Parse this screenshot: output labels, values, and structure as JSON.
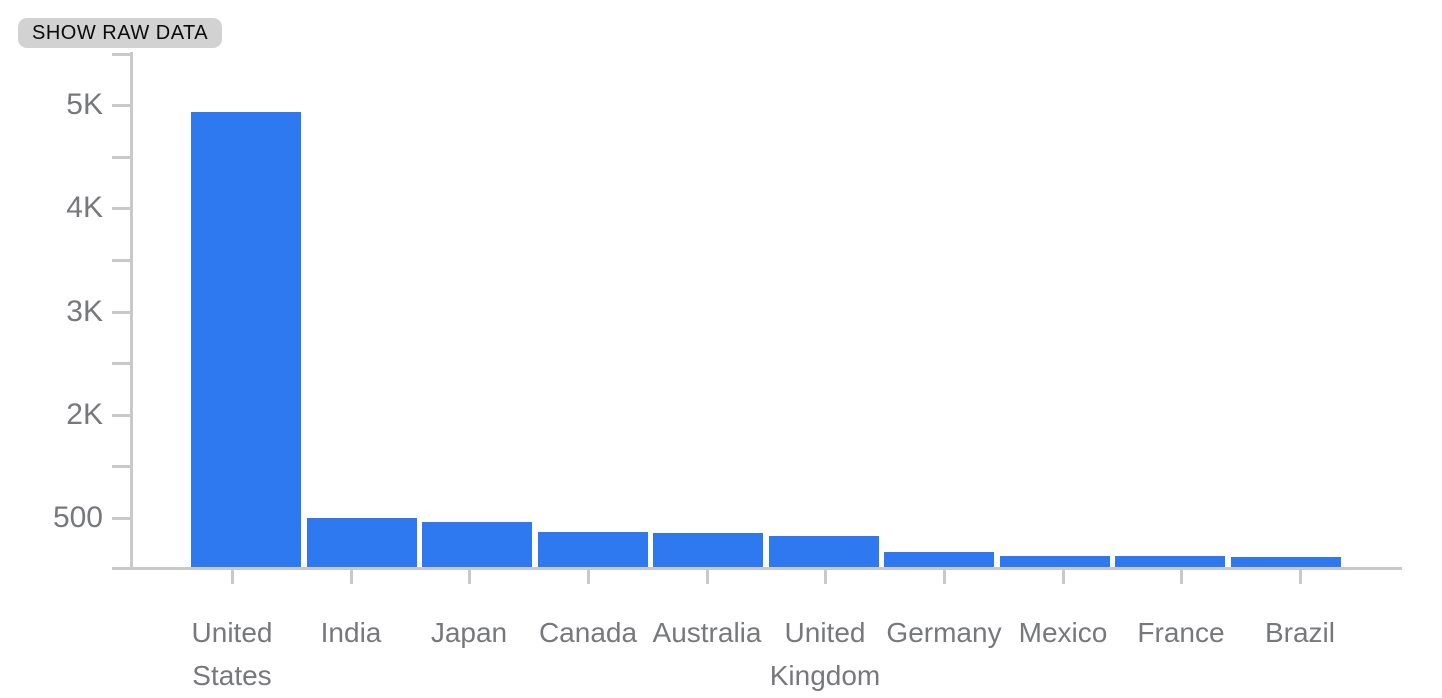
{
  "toolbar": {
    "show_raw_data_label": "SHOW RAW DATA"
  },
  "colors": {
    "bar_fill": "#2E78F0",
    "axis_line": "#C9C9C9",
    "axis_text": "#77787C",
    "button_background": "#D2D2D2",
    "button_text": "#0A0A0A",
    "page_background": "#FFFFFF"
  },
  "chart_data": {
    "type": "bar",
    "title": "",
    "xlabel": "",
    "ylabel": "",
    "categories": [
      "United States",
      "India",
      "Japan",
      "Canada",
      "Australia",
      "United Kingdom",
      "Germany",
      "Mexico",
      "France",
      "Brazil"
    ],
    "values": [
      4900,
      530,
      485,
      380,
      365,
      330,
      160,
      120,
      118,
      112
    ],
    "y_axis": {
      "tick_labels_top_to_bottom": [
        "5K",
        "4K",
        "3K",
        "2K",
        "500"
      ],
      "unlabeled_minor_tick_between_each_label": true,
      "axis_max": 5000,
      "axis_min": 0
    },
    "grid": false,
    "legend": "none",
    "bar_color": "#2E78F0"
  }
}
